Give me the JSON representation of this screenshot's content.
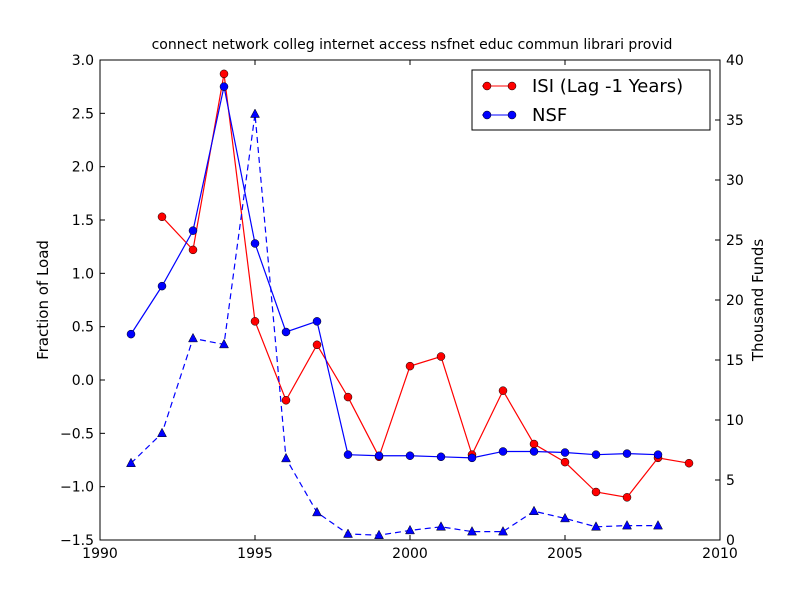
{
  "chart_data": {
    "type": "line",
    "title": "connect network colleg internet access nsfnet educ commun librari provid",
    "xlabel": "",
    "ylabel": "Fraction of Load",
    "y2label": "Thousand Funds",
    "xlim": [
      1990,
      2010
    ],
    "ylim": [
      -1.5,
      3.0
    ],
    "y2lim": [
      0,
      40
    ],
    "xticks": [
      "1990",
      "1995",
      "2000",
      "2005",
      "2010"
    ],
    "yticks": [
      "−1.5",
      "−1.0",
      "−0.5",
      "0.0",
      "0.5",
      "1.0",
      "1.5",
      "2.0",
      "2.5",
      "3.0"
    ],
    "y2ticks": [
      "0",
      "5",
      "10",
      "15",
      "20",
      "25",
      "30",
      "35",
      "40"
    ],
    "legend_position": "top-right",
    "grid": false,
    "series": [
      {
        "name": "ISI (Lag -1 Years)",
        "axis": "left",
        "color": "#ff0000",
        "marker": "circle",
        "x": [
          1992,
          1993,
          1994,
          1995,
          1996,
          1997,
          1998,
          1999,
          2000,
          2001,
          2002,
          2003,
          2004,
          2005,
          2006,
          2007,
          2008,
          2009
        ],
        "y": [
          1.53,
          1.22,
          2.87,
          0.55,
          -0.19,
          0.33,
          -0.16,
          -0.72,
          0.13,
          0.22,
          -0.7,
          -0.1,
          -0.6,
          -0.77,
          -1.05,
          -1.1,
          -0.73,
          -0.78
        ]
      },
      {
        "name": "NSF",
        "axis": "left",
        "color": "#0000ff",
        "marker": "circle",
        "x": [
          1991,
          1992,
          1993,
          1994,
          1995,
          1996,
          1997,
          1998,
          1999,
          2000,
          2001,
          2002,
          2003,
          2004,
          2005,
          2006,
          2007,
          2008
        ],
        "y": [
          0.43,
          0.88,
          1.4,
          2.75,
          1.28,
          0.45,
          0.55,
          -0.7,
          -0.71,
          -0.71,
          -0.72,
          -0.73,
          -0.67,
          -0.67,
          -0.68,
          -0.7,
          -0.69,
          -0.7
        ]
      },
      {
        "name": "",
        "axis": "right",
        "color": "#0000ff",
        "marker": "triangle",
        "dashed": true,
        "x": [
          1991,
          1992,
          1993,
          1994,
          1995,
          1996,
          1997,
          1998,
          1999,
          2000,
          2001,
          2002,
          2003,
          2004,
          2005,
          2006,
          2007,
          2008
        ],
        "y": [
          6.4,
          8.9,
          16.8,
          16.3,
          35.5,
          6.8,
          2.3,
          0.5,
          0.4,
          0.8,
          1.1,
          0.7,
          0.7,
          2.4,
          1.8,
          1.1,
          1.2,
          1.2
        ]
      }
    ]
  }
}
